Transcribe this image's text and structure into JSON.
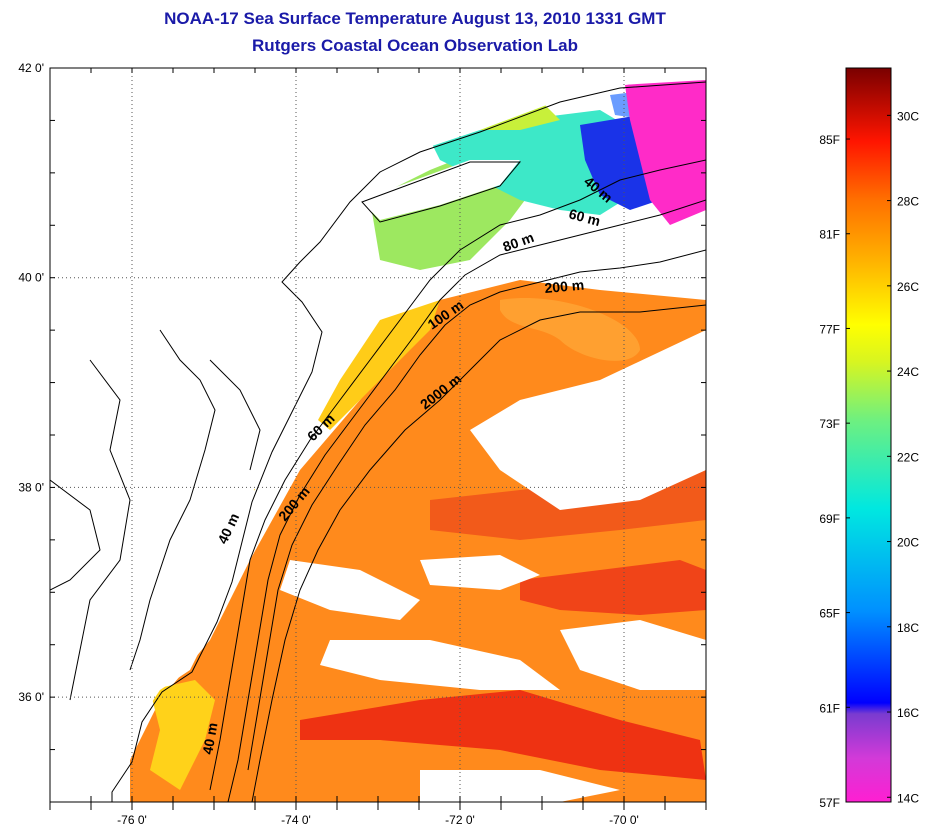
{
  "title": "NOAA-17 Sea Surface Temperature August 13, 2010 1331 GMT",
  "subtitle": "Rutgers Coastal Ocean Observation Lab",
  "map": {
    "lat_labels": [
      "42 0'",
      "40 0'",
      "38 0'",
      "36 0'"
    ],
    "lat_values": [
      42,
      40,
      38,
      36
    ],
    "lon_labels": [
      "-76 0'",
      "-74 0'",
      "-72 0'",
      "-70 0'"
    ],
    "lon_values": [
      -76,
      -74,
      -72,
      -70
    ],
    "lat_range": [
      35.0,
      42.0
    ],
    "lon_range": [
      -77.0,
      -69.0
    ],
    "gridlines": "dotted",
    "contour_labels": [
      {
        "text": "40 m"
      },
      {
        "text": "60 m"
      },
      {
        "text": "80 m"
      },
      {
        "text": "200 m"
      },
      {
        "text": "100 m"
      },
      {
        "text": "2000 m"
      },
      {
        "text": "60 m"
      },
      {
        "text": "200 m"
      },
      {
        "text": "40 m"
      },
      {
        "text": "40 m"
      }
    ]
  },
  "colorbar": {
    "fahrenheit_labels": [
      "85F",
      "81F",
      "77F",
      "73F",
      "69F",
      "65F",
      "61F",
      "57F"
    ],
    "fahrenheit_values": [
      85,
      81,
      77,
      73,
      69,
      65,
      61,
      57
    ],
    "celsius_labels": [
      "30C",
      "28C",
      "26C",
      "24C",
      "22C",
      "20C",
      "18C",
      "16C",
      "14C"
    ],
    "celsius_values": [
      30,
      28,
      26,
      24,
      22,
      20,
      18,
      16,
      14
    ],
    "range_f": [
      57,
      88
    ],
    "colors": [
      "#ff1fd2",
      "#7a3bd0",
      "#0000ff",
      "#00d8ff",
      "#9eef3a",
      "#ffff00",
      "#ff8c00",
      "#ff0000",
      "#7a0000"
    ]
  },
  "colors": {
    "title": "#1a1aa8",
    "land": "#ffffff",
    "coastline": "#000000",
    "sst_warm": "#ff8a1c",
    "sst_hot": "#ee2c10",
    "sst_shelf": "#ffd21a",
    "sst_cool": "#3de8c8",
    "sst_cold": "#1a33e8",
    "sst_coldest": "#ff2bc8"
  }
}
